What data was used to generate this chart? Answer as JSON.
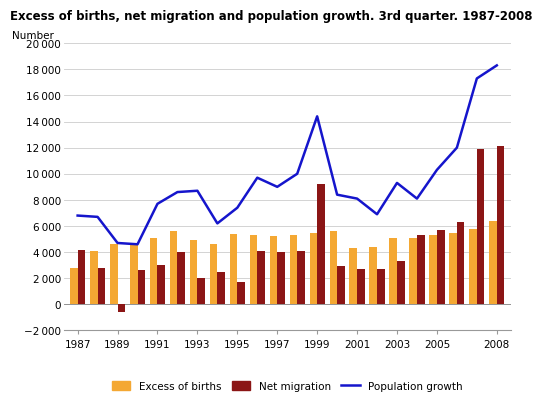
{
  "title": "Excess of births, net migration and population growth. 3rd quarter. 1987-2008",
  "ylabel": "Number",
  "years": [
    1987,
    1988,
    1989,
    1990,
    1991,
    1992,
    1993,
    1994,
    1995,
    1996,
    1997,
    1998,
    1999,
    2000,
    2001,
    2002,
    2003,
    2004,
    2005,
    2006,
    2007,
    2008
  ],
  "excess_births": [
    2800,
    4100,
    4600,
    4600,
    5100,
    5600,
    4900,
    4600,
    5400,
    5300,
    5200,
    5300,
    5500,
    5600,
    4300,
    4400,
    5100,
    5100,
    5300,
    5500,
    5800,
    6400
  ],
  "net_migration": [
    4200,
    2800,
    -600,
    2600,
    3000,
    4000,
    2000,
    2500,
    1700,
    4100,
    4000,
    4100,
    9200,
    2900,
    2700,
    2700,
    3300,
    5300,
    5700,
    6300,
    11900,
    12100
  ],
  "population_growth": [
    6800,
    6700,
    4700,
    4600,
    7700,
    8600,
    8700,
    6200,
    7400,
    9700,
    9000,
    10000,
    14400,
    8400,
    8100,
    6900,
    9300,
    8100,
    10300,
    12000,
    17300,
    18300
  ],
  "color_births": "#F4A833",
  "color_migration": "#8B1515",
  "color_growth": "#1515CC",
  "ylim": [
    -2000,
    20000
  ],
  "yticks": [
    -2000,
    0,
    2000,
    4000,
    6000,
    8000,
    10000,
    12000,
    14000,
    16000,
    18000,
    20000
  ],
  "xtick_years": [
    1987,
    1989,
    1991,
    1993,
    1995,
    1997,
    1999,
    2001,
    2003,
    2005,
    2008
  ],
  "bg_color": "#FFFFFF",
  "grid_color": "#CCCCCC"
}
